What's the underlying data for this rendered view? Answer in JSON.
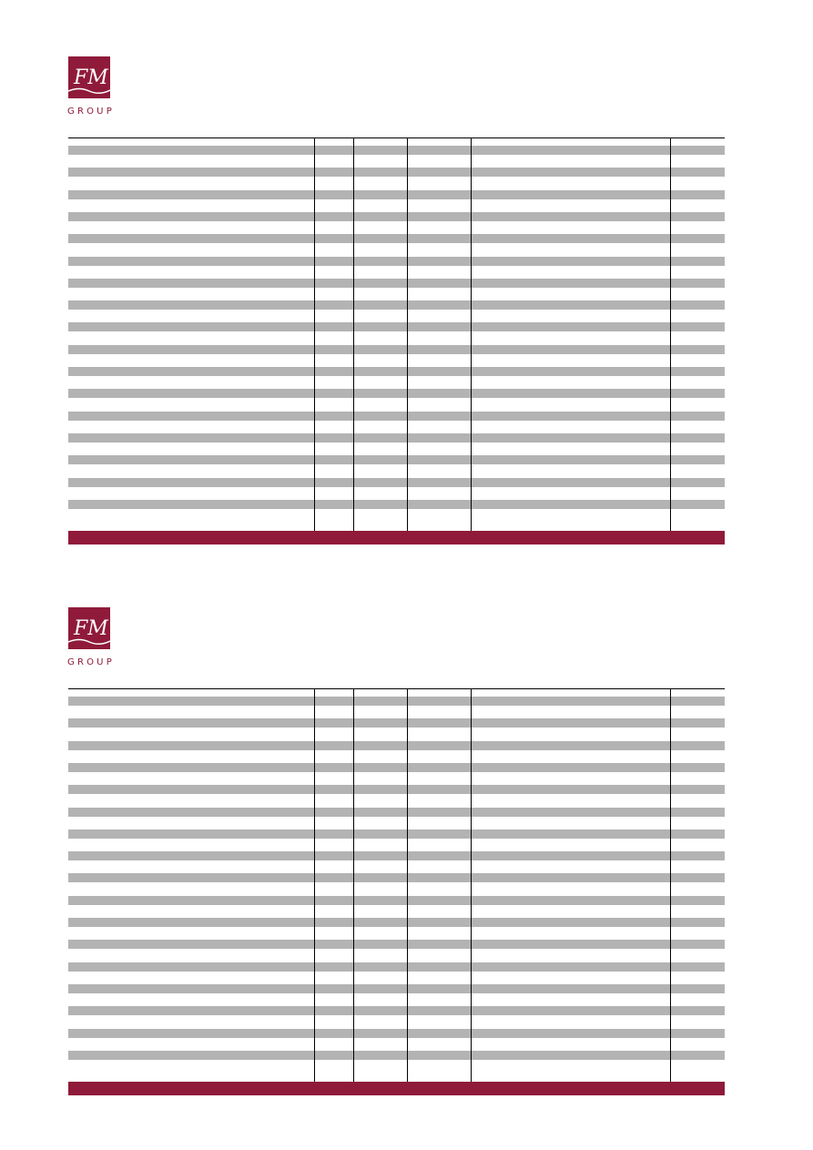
{
  "colors": {
    "brand": "#8f1a3a",
    "row_stripe": "#b3b3b4"
  },
  "forms": [
    {
      "logo": {
        "monogram": "FM",
        "wordmark": "GROUP"
      }
    },
    {
      "logo": {
        "monogram": "FM",
        "wordmark": "GROUP"
      }
    }
  ]
}
